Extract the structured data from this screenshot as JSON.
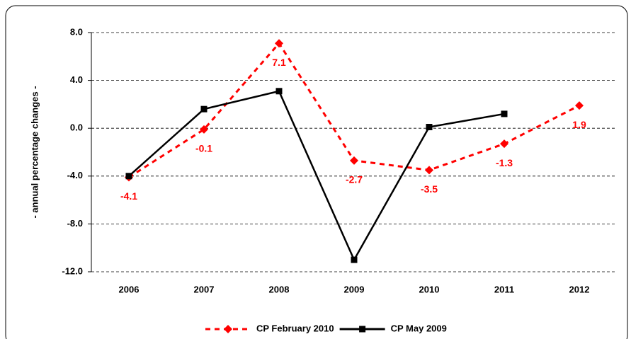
{
  "chart_data": {
    "type": "line",
    "y_label": "- annual percentage changes -",
    "categories": [
      "2006",
      "2007",
      "2008",
      "2009",
      "2010",
      "2011",
      "2012"
    ],
    "series": [
      {
        "name": "CP February 2010",
        "color": "#ff0000",
        "style": "dashed",
        "marker": "diamond",
        "data_labels": true,
        "values": [
          -4.1,
          -0.1,
          7.1,
          -2.7,
          -3.5,
          -1.3,
          1.9
        ]
      },
      {
        "name": "CP May 2009",
        "color": "#000000",
        "style": "solid",
        "marker": "square",
        "data_labels": false,
        "values": [
          -4.0,
          1.6,
          3.1,
          -11.0,
          0.1,
          1.2,
          null
        ]
      }
    ],
    "ylim": [
      -12,
      8
    ],
    "yticks": [
      {
        "value": -12,
        "label": "-12.0"
      },
      {
        "value": -8,
        "label": "-8.0"
      },
      {
        "value": -4,
        "label": "-4.0"
      },
      {
        "value": 0,
        "label": "0.0"
      },
      {
        "value": 4,
        "label": "4.0"
      },
      {
        "value": 8,
        "label": "8.0"
      }
    ],
    "grid": true,
    "legend": "bottom"
  }
}
